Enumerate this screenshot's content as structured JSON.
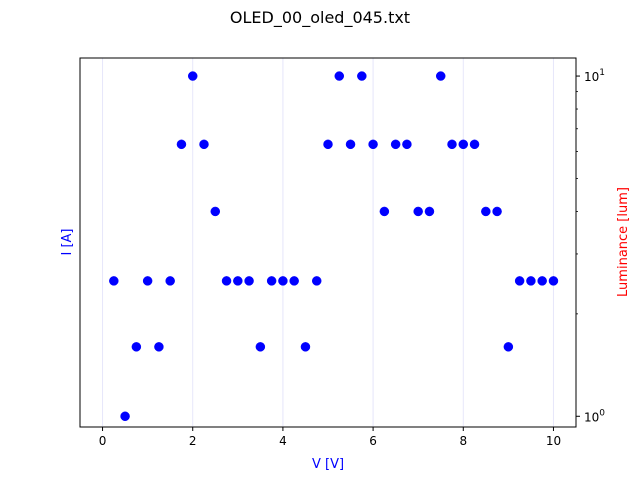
{
  "chart_data": {
    "type": "scatter",
    "title": "OLED_00_oled_045.txt",
    "xlabel": "V [V]",
    "ylabel_left": "I [A]",
    "ylabel_right": "Luminance [lum]",
    "xlim": [
      -0.5,
      10.5
    ],
    "yscale_right": "log",
    "ylim_right": [
      0.93,
      11.3
    ],
    "xticks": [
      0,
      2,
      4,
      6,
      8,
      10
    ],
    "xtick_labels": [
      "0",
      "2",
      "4",
      "6",
      "8",
      "10"
    ],
    "yticks_right": [
      1,
      10
    ],
    "ytick_labels_right": [
      {
        "base": "10",
        "exp": "0"
      },
      {
        "base": "10",
        "exp": "1"
      }
    ],
    "grid": "vertical lines at x ticks",
    "series": [
      {
        "color": "#0000ff",
        "marker": "circle",
        "points": [
          [
            0.25,
            2.5
          ],
          [
            0.5,
            1.0
          ],
          [
            0.75,
            1.6
          ],
          [
            1.0,
            2.5
          ],
          [
            1.25,
            1.6
          ],
          [
            1.5,
            2.5
          ],
          [
            1.75,
            6.3
          ],
          [
            2.0,
            10.0
          ],
          [
            2.25,
            6.3
          ],
          [
            2.5,
            4.0
          ],
          [
            2.75,
            2.5
          ],
          [
            3.0,
            2.5
          ],
          [
            3.25,
            2.5
          ],
          [
            3.5,
            1.6
          ],
          [
            3.75,
            2.5
          ],
          [
            4.0,
            2.5
          ],
          [
            4.25,
            2.5
          ],
          [
            4.5,
            1.6
          ],
          [
            4.75,
            2.5
          ],
          [
            5.0,
            6.3
          ],
          [
            5.25,
            10.0
          ],
          [
            5.5,
            6.3
          ],
          [
            5.75,
            10.0
          ],
          [
            6.0,
            6.3
          ],
          [
            6.25,
            4.0
          ],
          [
            6.5,
            6.3
          ],
          [
            6.75,
            6.3
          ],
          [
            7.0,
            4.0
          ],
          [
            7.25,
            4.0
          ],
          [
            7.5,
            10.0
          ],
          [
            7.75,
            6.3
          ],
          [
            8.0,
            6.3
          ],
          [
            8.25,
            6.3
          ],
          [
            8.5,
            4.0
          ],
          [
            8.75,
            4.0
          ],
          [
            9.0,
            1.6
          ],
          [
            9.25,
            2.5
          ],
          [
            9.5,
            2.5
          ],
          [
            9.75,
            2.5
          ],
          [
            10.0,
            2.5
          ]
        ]
      }
    ],
    "colors": {
      "left_axis_label": "#0000ff",
      "right_axis_label": "#ff0000",
      "x_axis_label": "#0000ff",
      "grid": "#e6e6fa",
      "marker": "#0000ff"
    }
  }
}
